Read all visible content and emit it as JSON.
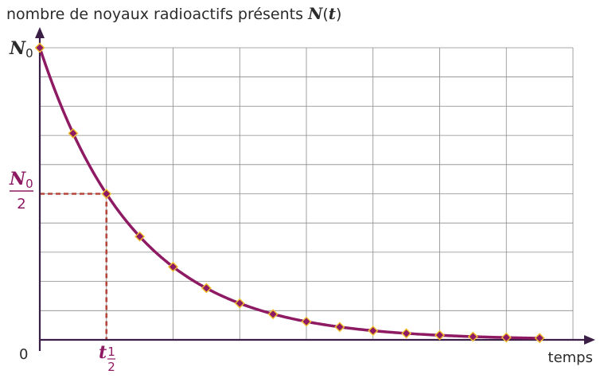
{
  "chart_data": {
    "type": "line",
    "ylabel": {
      "text": "nombre de noyaux radioactifs présents",
      "symbol": "N",
      "symbol_arg": "t"
    },
    "xlabel": "temps",
    "origin_label": "0",
    "y_top_label": {
      "symbol": "N",
      "sub": "0"
    },
    "y_half_label": {
      "num_symbol": "N",
      "num_sub": "0",
      "den": "2"
    },
    "x_half_label": {
      "symbol": "t",
      "sub_num": "1",
      "sub_den": "2"
    },
    "xlim": [
      0,
      16
    ],
    "ylim": [
      0,
      1
    ],
    "grid": true,
    "half_life": 2,
    "half_value": 0.5,
    "series": [
      {
        "x": [
          0,
          1,
          2,
          3,
          4,
          5,
          6,
          7,
          8,
          9,
          10,
          11,
          12,
          13,
          14,
          15
        ],
        "values": [
          1.0,
          0.707,
          0.5,
          0.354,
          0.25,
          0.177,
          0.125,
          0.088,
          0.0625,
          0.044,
          0.031,
          0.022,
          0.016,
          0.011,
          0.008,
          0.006
        ]
      }
    ],
    "colors": {
      "curve": "#8e1a63",
      "marker_fill": "#8e1a63",
      "marker_stroke": "#f2c12e",
      "axis": "#3b1f47",
      "grid": "#8a8a8a",
      "dashed": "#b5463c",
      "accent_text": "#8e1a63"
    }
  }
}
